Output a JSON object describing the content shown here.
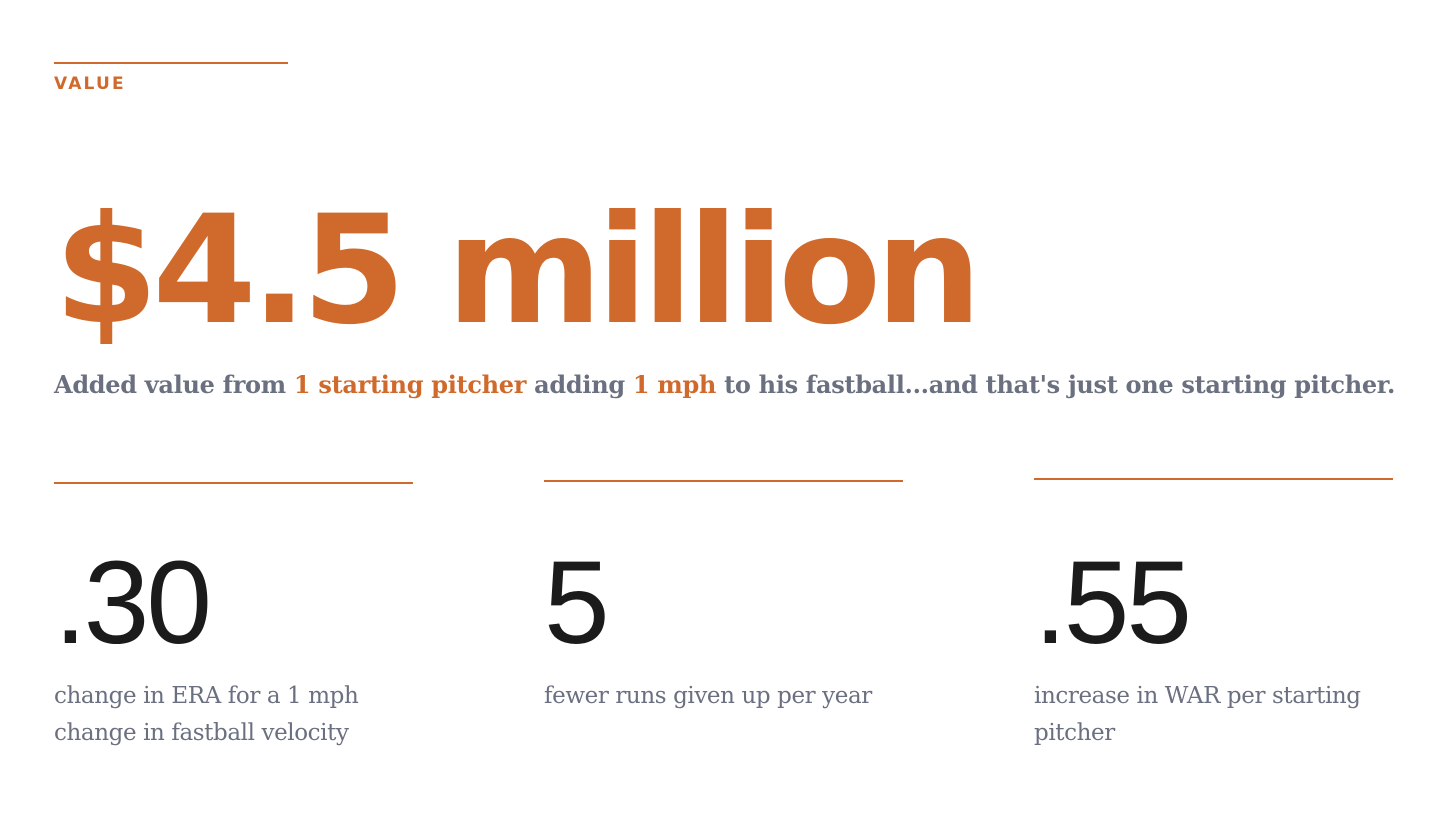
{
  "section": {
    "label": "VALUE"
  },
  "headline": {
    "value": "$4.5 million"
  },
  "subline": {
    "part1": "Added value from ",
    "highlight1": "1 starting pitcher",
    "part2": " adding ",
    "highlight2": "1 mph",
    "part3": " to his fastball...and that's just one starting pitcher."
  },
  "stats": [
    {
      "value": ".30",
      "caption": "change in ERA for a 1 mph change in fastball velocity"
    },
    {
      "value": "5",
      "caption": "fewer runs given up per year"
    },
    {
      "value": ".55",
      "caption": "increase in WAR per starting pitcher"
    }
  ],
  "colors": {
    "accent": "#d06a2c",
    "body_text": "#6b7080",
    "stat_text": "#1b1b1b"
  }
}
